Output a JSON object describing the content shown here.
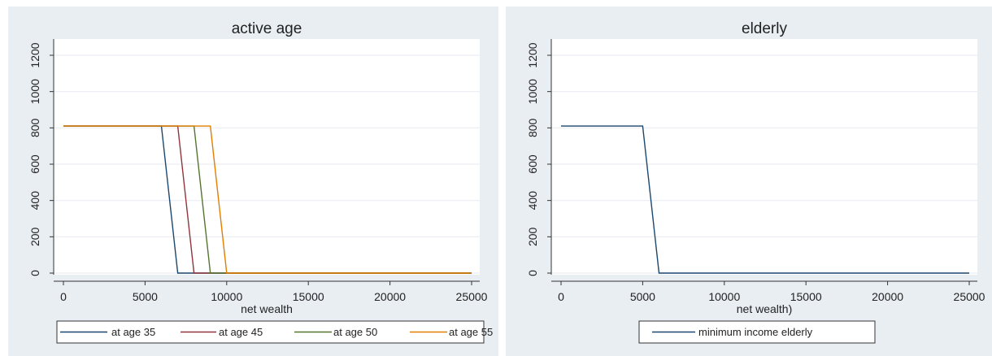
{
  "chart_data": [
    {
      "type": "line",
      "title": "active age",
      "xlabel": "net wealth",
      "ylabel": "",
      "xlim": [
        0,
        25000
      ],
      "ylim": [
        0,
        1200
      ],
      "x_ticks": [
        0,
        5000,
        10000,
        15000,
        20000,
        25000
      ],
      "y_ticks": [
        0,
        200,
        400,
        600,
        800,
        1000,
        1200
      ],
      "x_tick_labels": [
        "0",
        "5000",
        "10000",
        "15000",
        "20000",
        "25000"
      ],
      "y_tick_labels": [
        "0",
        "200",
        "400",
        "600",
        "800",
        "1000",
        "1200"
      ],
      "grid": true,
      "legend_position": "bottom",
      "series": [
        {
          "name": "at age 35",
          "color": "#1a476f",
          "points": [
            [
              0,
              810
            ],
            [
              6000,
              810
            ],
            [
              7000,
              0
            ],
            [
              25000,
              0
            ]
          ]
        },
        {
          "name": "at age 45",
          "color": "#90353b",
          "points": [
            [
              0,
              810
            ],
            [
              7000,
              810
            ],
            [
              8000,
              0
            ],
            [
              25000,
              0
            ]
          ]
        },
        {
          "name": "at age 50",
          "color": "#55752f",
          "points": [
            [
              0,
              810
            ],
            [
              8000,
              810
            ],
            [
              9000,
              0
            ],
            [
              25000,
              0
            ]
          ]
        },
        {
          "name": "at age 55",
          "color": "#e37e00",
          "points": [
            [
              0,
              810
            ],
            [
              9000,
              810
            ],
            [
              10000,
              0
            ],
            [
              25000,
              0
            ]
          ]
        }
      ]
    },
    {
      "type": "line",
      "title": "elderly",
      "xlabel": "net wealth)",
      "ylabel": "",
      "xlim": [
        0,
        25000
      ],
      "ylim": [
        0,
        1200
      ],
      "x_ticks": [
        0,
        5000,
        10000,
        15000,
        20000,
        25000
      ],
      "y_ticks": [
        0,
        200,
        400,
        600,
        800,
        1000,
        1200
      ],
      "x_tick_labels": [
        "0",
        "5000",
        "10000",
        "15000",
        "20000",
        "25000"
      ],
      "y_tick_labels": [
        "0",
        "200",
        "400",
        "600",
        "800",
        "1000",
        "1200"
      ],
      "grid": true,
      "legend_position": "bottom",
      "series": [
        {
          "name": "minimum income elderly",
          "color": "#1a476f",
          "points": [
            [
              0,
              810
            ],
            [
              5000,
              810
            ],
            [
              6000,
              0
            ],
            [
              25000,
              0
            ]
          ]
        }
      ]
    }
  ]
}
